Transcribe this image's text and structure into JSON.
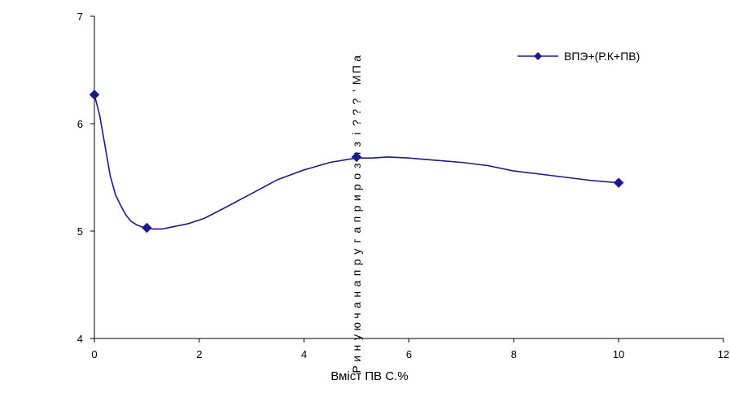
{
  "chart_data": {
    "type": "line",
    "title": "",
    "xlabel": "Вміст ПВ С.%",
    "ylabel": "Р и н у ю ч а н а п р у г а п р и р о з я з і ? ? ? ’ М П а",
    "xlim": [
      0,
      12
    ],
    "ylim": [
      4,
      7
    ],
    "x_ticks": [
      "0",
      "2",
      "4",
      "6",
      "8",
      "10",
      "12"
    ],
    "y_ticks": [
      "4",
      "5",
      "6",
      "7"
    ],
    "grid": false,
    "legend_position": "top-right",
    "series": [
      {
        "name": "ВПЭ+(Р.К+ПВ)",
        "color": "#1a1a8c",
        "marker": "diamond",
        "x": [
          0,
          1,
          5,
          10
        ],
        "y": [
          6.27,
          5.03,
          5.69,
          5.45
        ],
        "curve_x": [
          0,
          0.1,
          0.2,
          0.3,
          0.4,
          0.5,
          0.6,
          0.7,
          0.8,
          0.9,
          1.0,
          1.1,
          1.3,
          1.5,
          1.8,
          2.1,
          2.5,
          3.0,
          3.5,
          4.0,
          4.5,
          5.0,
          5.3,
          5.6,
          6.0,
          6.5,
          7.0,
          7.5,
          8.0,
          8.5,
          9.0,
          9.5,
          10.0
        ],
        "curve_y": [
          6.27,
          6.08,
          5.8,
          5.52,
          5.34,
          5.24,
          5.15,
          5.09,
          5.06,
          5.04,
          5.03,
          5.02,
          5.02,
          5.04,
          5.07,
          5.12,
          5.22,
          5.35,
          5.48,
          5.57,
          5.64,
          5.68,
          5.68,
          5.69,
          5.68,
          5.66,
          5.64,
          5.61,
          5.56,
          5.53,
          5.5,
          5.47,
          5.45
        ]
      }
    ]
  }
}
